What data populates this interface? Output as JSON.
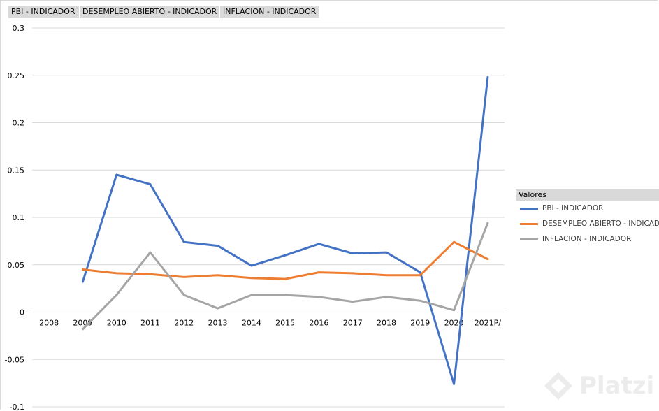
{
  "field_buttons": [
    "PBI - INDICADOR",
    "DESEMPLEO ABIERTO - INDICADOR",
    "INFLACION - INDICADOR"
  ],
  "legend": {
    "title": "Valores",
    "items": [
      {
        "label": "PBI - INDICADOR",
        "color": "#4472c4"
      },
      {
        "label": "DESEMPLEO ABIERTO - INDICADOR",
        "color": "#ed7d31"
      },
      {
        "label": "INFLACION - INDICADOR",
        "color": "#a5a5a5"
      }
    ]
  },
  "watermark": "Platzi",
  "chart_data": {
    "type": "line",
    "categories": [
      "2008",
      "2009",
      "2010",
      "2011",
      "2012",
      "2013",
      "2014",
      "2015",
      "2016",
      "2017",
      "2018",
      "2019",
      "2020",
      "2021P/"
    ],
    "y_tick_labels": [
      "0.3",
      "0.25",
      "0.2",
      "0.15",
      "0.1",
      "0.05",
      "0",
      "-0.05",
      "-0.1"
    ],
    "ylim": [
      -0.1,
      0.3
    ],
    "grid": true,
    "legend_position": "right",
    "series": [
      {
        "name": "PBI - INDICADOR",
        "color": "#4472c4",
        "values": [
          null,
          0.032,
          0.145,
          0.135,
          0.074,
          0.07,
          0.049,
          0.06,
          0.072,
          0.062,
          0.063,
          0.042,
          -0.076,
          0.248
        ]
      },
      {
        "name": "DESEMPLEO ABIERTO - INDICADOR",
        "color": "#ed7d31",
        "values": [
          null,
          0.045,
          0.041,
          0.04,
          0.037,
          0.039,
          0.036,
          0.035,
          0.042,
          0.041,
          0.039,
          0.039,
          0.074,
          0.056
        ]
      },
      {
        "name": "INFLACION - INDICADOR",
        "color": "#a5a5a5",
        "values": [
          null,
          -0.018,
          0.018,
          0.063,
          0.018,
          0.004,
          0.018,
          0.018,
          0.016,
          0.011,
          0.016,
          0.012,
          0.002,
          0.094
        ]
      }
    ]
  }
}
